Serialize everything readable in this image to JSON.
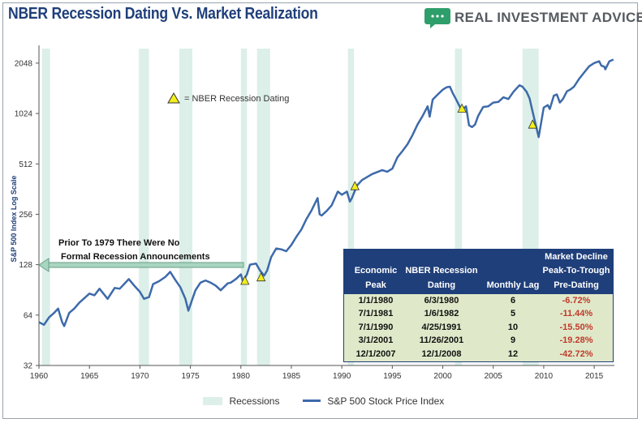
{
  "title": "NBER Recession Dating Vs. Market Realization",
  "brand": {
    "name": "REAL INVESTMENT ADVICE",
    "logo_icon": "chat-bubble-icon",
    "accent": "#2e9e6b"
  },
  "annotations": {
    "triangle_legend": "= NBER Recession Dating",
    "arrow_note_line1": "Prior To 1979 There Were No",
    "arrow_note_line2": "Formal Recession Announcements"
  },
  "table": {
    "headers": {
      "economic_peak_1": "Economic",
      "economic_peak_2": "Peak",
      "nber_1": "NBER Recession",
      "nber_2": "Dating",
      "lag": "Monthly Lag",
      "decline_1": "Market Decline",
      "decline_2": "Peak-To-Trough",
      "decline_3": "Pre-Dating"
    },
    "rows": [
      {
        "peak": "1/1/1980",
        "dating": "6/3/1980",
        "lag": "6",
        "decline": "-6.72%"
      },
      {
        "peak": "7/1/1981",
        "dating": "1/6/1982",
        "lag": "5",
        "decline": "-11.44%"
      },
      {
        "peak": "7/1/1990",
        "dating": "4/25/1991",
        "lag": "10",
        "decline": "-15.50%"
      },
      {
        "peak": "3/1/2001",
        "dating": "11/26/2001",
        "lag": "9",
        "decline": "-19.28%"
      },
      {
        "peak": "12/1/2007",
        "dating": "12/1/2008",
        "lag": "12",
        "decline": "-42.72%"
      }
    ]
  },
  "legend": {
    "recessions": "Recessions",
    "series": "S&P 500 Stock Price Index"
  },
  "chart_data": {
    "type": "line",
    "title": "NBER Recession Dating Vs. Market Realization",
    "ylabel": "S&P 500 Index Log Scale",
    "xlabel": "",
    "xlim": [
      1960,
      2017
    ],
    "ylim": [
      32,
      2500
    ],
    "y_scale": "log2",
    "x_ticks": [
      "1960",
      "1965",
      "1970",
      "1975",
      "1980",
      "1985",
      "1990",
      "1995",
      "2000",
      "2005",
      "2010",
      "2015"
    ],
    "y_ticks": [
      "32",
      "64",
      "128",
      "256",
      "512",
      "1024",
      "2048"
    ],
    "recessions": [
      [
        1960.3,
        1961.1
      ],
      [
        1969.9,
        1970.9
      ],
      [
        1973.9,
        1975.2
      ],
      [
        1980.0,
        1980.6
      ],
      [
        1981.6,
        1982.9
      ],
      [
        1990.6,
        1991.2
      ],
      [
        2001.2,
        2001.9
      ],
      [
        2007.9,
        2009.5
      ]
    ],
    "nber_dating_markers": [
      [
        1980.4,
        102
      ],
      [
        1982.0,
        107
      ],
      [
        1991.3,
        375
      ],
      [
        2001.9,
        1090
      ],
      [
        2008.9,
        875
      ]
    ],
    "series": [
      {
        "name": "S&P 500 Stock Price Index",
        "x": [
          1960.0,
          1960.5,
          1961.0,
          1961.5,
          1961.9,
          1962.3,
          1962.5,
          1963.0,
          1963.5,
          1964.0,
          1965.0,
          1965.5,
          1966.0,
          1966.8,
          1967.5,
          1968.0,
          1968.9,
          1969.5,
          1970.0,
          1970.4,
          1970.9,
          1971.3,
          1971.9,
          1972.5,
          1973.0,
          1973.5,
          1974.0,
          1974.5,
          1974.8,
          1975.2,
          1975.5,
          1976.0,
          1976.5,
          1977.0,
          1977.5,
          1978.0,
          1978.7,
          1979.0,
          1979.5,
          1980.0,
          1980.2,
          1980.6,
          1980.9,
          1981.5,
          1981.9,
          1982.3,
          1982.6,
          1983.0,
          1983.5,
          1984.0,
          1984.5,
          1985.0,
          1985.5,
          1986.0,
          1986.5,
          1987.0,
          1987.6,
          1987.8,
          1988.0,
          1988.5,
          1989.0,
          1989.6,
          1990.0,
          1990.5,
          1990.8,
          1991.0,
          1991.5,
          1992.0,
          1993.0,
          1994.0,
          1994.5,
          1995.0,
          1995.5,
          1996.0,
          1996.5,
          1997.0,
          1997.5,
          1998.0,
          1998.5,
          1998.7,
          1999.0,
          1999.5,
          2000.0,
          2000.4,
          2000.7,
          2001.0,
          2001.3,
          2001.7,
          2001.9,
          2002.3,
          2002.6,
          2002.9,
          2003.2,
          2003.5,
          2004.0,
          2004.5,
          2005.0,
          2005.5,
          2006.0,
          2006.5,
          2007.0,
          2007.6,
          2007.9,
          2008.3,
          2008.6,
          2008.9,
          2009.2,
          2009.5,
          2010.0,
          2010.4,
          2010.6,
          2011.0,
          2011.3,
          2011.6,
          2011.9,
          2012.3,
          2012.6,
          2013.0,
          2013.5,
          2014.0,
          2014.5,
          2015.0,
          2015.5,
          2015.7,
          2016.0,
          2016.1,
          2016.5,
          2016.9
        ],
        "values": [
          58,
          56,
          62,
          66,
          70,
          58,
          55,
          66,
          70,
          76,
          86,
          84,
          92,
          80,
          93,
          92,
          105,
          95,
          88,
          80,
          82,
          98,
          102,
          108,
          116,
          104,
          94,
          80,
          68,
          80,
          90,
          100,
          103,
          100,
          96,
          90,
          99,
          100,
          105,
          112,
          102,
          112,
          128,
          130,
          118,
          110,
          118,
          142,
          160,
          158,
          154,
          168,
          188,
          208,
          240,
          270,
          320,
          256,
          252,
          268,
          290,
          350,
          335,
          350,
          305,
          320,
          380,
          410,
          445,
          470,
          460,
          480,
          560,
          610,
          670,
          760,
          880,
          990,
          1130,
          980,
          1240,
          1330,
          1420,
          1470,
          1480,
          1350,
          1250,
          1120,
          1080,
          1130,
          870,
          850,
          880,
          990,
          1120,
          1130,
          1190,
          1200,
          1280,
          1250,
          1380,
          1510,
          1480,
          1380,
          1260,
          1050,
          880,
          740,
          1110,
          1150,
          1090,
          1310,
          1330,
          1190,
          1250,
          1390,
          1420,
          1480,
          1650,
          1800,
          1960,
          2050,
          2100,
          1980,
          1950,
          1880,
          2100,
          2150
        ]
      }
    ]
  }
}
